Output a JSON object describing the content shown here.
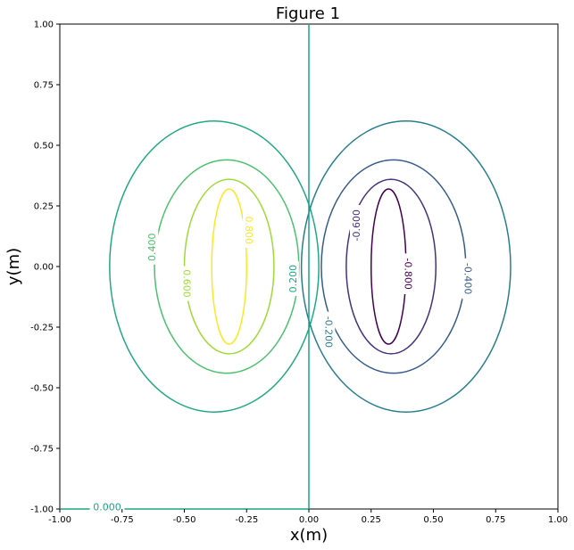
{
  "chart_data": {
    "type": "contour",
    "title": "Figure 1",
    "xlabel": "x(m)",
    "ylabel": "y(m)",
    "xlim": [
      -1.0,
      1.0
    ],
    "ylim": [
      -1.0,
      1.0
    ],
    "xticks": [
      "-1.00",
      "-0.75",
      "-0.50",
      "-0.25",
      "0.00",
      "0.25",
      "0.50",
      "0.75",
      "1.00"
    ],
    "yticks": [
      "-1.00",
      "-0.75",
      "-0.50",
      "-0.25",
      "0.00",
      "0.25",
      "0.50",
      "0.75",
      "1.00"
    ],
    "grid": false,
    "levels": [
      {
        "value": -0.8,
        "label": "-0.800",
        "color": "#440154"
      },
      {
        "value": -0.6,
        "label": "-0.600",
        "color": "#46327e"
      },
      {
        "value": -0.4,
        "label": "-0.400",
        "color": "#365c8d"
      },
      {
        "value": -0.2,
        "label": "-0.200",
        "color": "#277f8e"
      },
      {
        "value": 0.0,
        "label": "0.000",
        "color": "#1fa187"
      },
      {
        "value": 0.2,
        "label": "0.200",
        "color": "#22a884"
      },
      {
        "value": 0.4,
        "label": "0.400",
        "color": "#4ac16d"
      },
      {
        "value": 0.6,
        "label": "0.600",
        "color": "#a0da39"
      },
      {
        "value": 0.8,
        "label": "0.800",
        "color": "#fde725"
      }
    ],
    "contours": [
      {
        "level": 0.8,
        "type": "ellipse",
        "center": [
          -0.32,
          0.0
        ],
        "rx": 0.07,
        "ry": 0.32,
        "label_at": [
          -0.24,
          0.15
        ],
        "label_rot": 90
      },
      {
        "level": 0.6,
        "type": "ellipse",
        "center": [
          -0.32,
          0.0
        ],
        "rx": 0.18,
        "ry": 0.36,
        "label_at": [
          -0.49,
          -0.07
        ],
        "label_rot": 90
      },
      {
        "level": 0.4,
        "type": "ellipse",
        "center": [
          -0.33,
          0.0
        ],
        "rx": 0.29,
        "ry": 0.44,
        "label_at": [
          -0.63,
          0.08
        ],
        "label_rot": -90
      },
      {
        "level": 0.2,
        "type": "ellipse",
        "center": [
          -0.38,
          0.0
        ],
        "rx": 0.42,
        "ry": 0.6,
        "label_at": [
          -0.065,
          -0.05
        ],
        "label_rot": -90
      },
      {
        "level": -0.8,
        "type": "ellipse",
        "center": [
          0.32,
          0.0
        ],
        "rx": 0.07,
        "ry": 0.32,
        "label_at": [
          0.4,
          -0.03
        ],
        "label_rot": 90
      },
      {
        "level": -0.6,
        "type": "ellipse",
        "center": [
          0.33,
          0.0
        ],
        "rx": 0.18,
        "ry": 0.36,
        "label_at": [
          0.19,
          0.17
        ],
        "label_rot": -90
      },
      {
        "level": -0.4,
        "type": "ellipse",
        "center": [
          0.34,
          0.0
        ],
        "rx": 0.29,
        "ry": 0.44,
        "label_at": [
          0.64,
          -0.05
        ],
        "label_rot": 90
      },
      {
        "level": -0.2,
        "type": "ellipse",
        "center": [
          0.39,
          0.0
        ],
        "rx": 0.42,
        "ry": 0.6,
        "label_at": [
          0.08,
          -0.27
        ],
        "label_rot": 90
      },
      {
        "level": 0.0,
        "type": "polyline",
        "points": [
          [
            0.0,
            1.0
          ],
          [
            0.0,
            -1.0
          ],
          [
            -1.0,
            -1.0
          ]
        ],
        "label_at": [
          -0.81,
          -0.99
        ],
        "label_rot": 0
      }
    ]
  }
}
